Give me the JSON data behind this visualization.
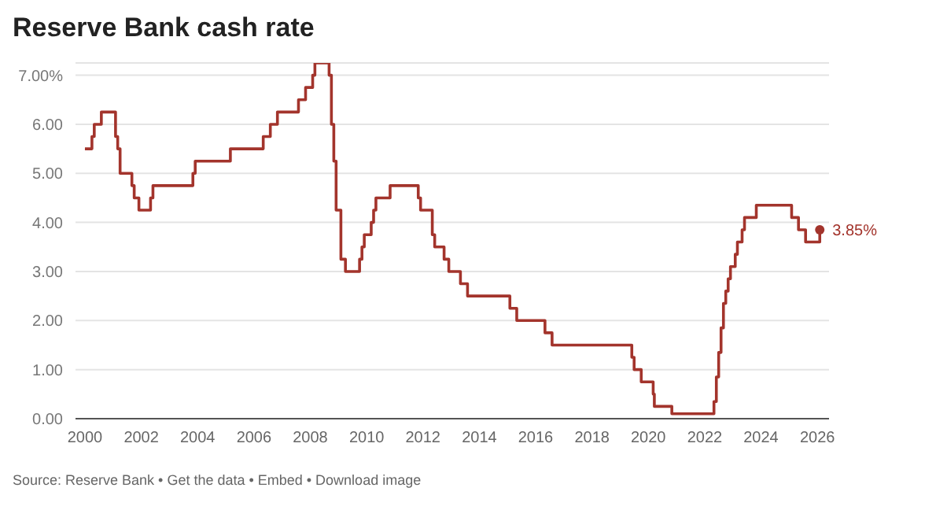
{
  "chart_data": {
    "type": "step",
    "title": "Reserve Bank cash rate",
    "x": [
      "2000-01",
      "2000-02",
      "2000-04",
      "2000-05",
      "2000-08",
      "2001-02",
      "2001-03",
      "2001-04",
      "2001-09",
      "2001-10",
      "2001-12",
      "2002-05",
      "2002-06",
      "2003-11",
      "2003-12",
      "2005-03",
      "2006-05",
      "2006-08",
      "2006-11",
      "2007-08",
      "2007-11",
      "2008-02",
      "2008-03",
      "2008-09",
      "2008-10",
      "2008-11",
      "2008-12",
      "2009-02",
      "2009-04",
      "2009-10",
      "2009-11",
      "2009-12",
      "2010-03",
      "2010-04",
      "2010-05",
      "2010-11",
      "2011-11",
      "2011-12",
      "2012-05",
      "2012-06",
      "2012-10",
      "2012-12",
      "2013-05",
      "2013-08",
      "2015-02",
      "2015-05",
      "2016-05",
      "2016-08",
      "2019-06",
      "2019-07",
      "2019-10",
      "2020-03-04",
      "2020-03-19",
      "2020-11",
      "2022-05",
      "2022-06",
      "2022-07",
      "2022-08",
      "2022-09",
      "2022-10",
      "2022-11",
      "2022-12",
      "2023-02",
      "2023-03",
      "2023-05",
      "2023-06",
      "2023-11",
      "2025-02",
      "2025-05",
      "2025-08",
      "2026-02"
    ],
    "series": [
      {
        "color": "#a3342c",
        "values": [
          5.5,
          5.5,
          5.75,
          6.0,
          6.25,
          5.75,
          5.5,
          5.0,
          4.75,
          4.5,
          4.25,
          4.5,
          4.75,
          5.0,
          5.25,
          5.5,
          5.75,
          6.0,
          6.25,
          6.5,
          6.75,
          7.0,
          7.25,
          7.0,
          6.0,
          5.25,
          4.25,
          3.25,
          3.0,
          3.25,
          3.5,
          3.75,
          4.0,
          4.25,
          4.5,
          4.75,
          4.5,
          4.25,
          3.75,
          3.5,
          3.25,
          3.0,
          2.75,
          2.5,
          2.25,
          2.0,
          1.75,
          1.5,
          1.25,
          1.0,
          0.75,
          0.5,
          0.25,
          0.1,
          0.35,
          0.85,
          1.35,
          1.85,
          2.35,
          2.6,
          2.85,
          3.1,
          3.35,
          3.6,
          3.85,
          4.1,
          4.35,
          4.1,
          3.85,
          3.6,
          3.85
        ]
      }
    ],
    "xlim": [
      "1999-09",
      "2026-06"
    ],
    "xticks": [
      "2000",
      "2002",
      "2004",
      "2006",
      "2008",
      "2010",
      "2012",
      "2014",
      "2016",
      "2018",
      "2020",
      "2022",
      "2024",
      "2026"
    ],
    "ylim": [
      0,
      7.25
    ],
    "yticks": [
      {
        "value": 0,
        "label": "0.00"
      },
      {
        "value": 1,
        "label": "1.00"
      },
      {
        "value": 2,
        "label": "2.00"
      },
      {
        "value": 3,
        "label": "3.00"
      },
      {
        "value": 4,
        "label": "4.00"
      },
      {
        "value": 5,
        "label": "5.00"
      },
      {
        "value": 6,
        "label": "6.00"
      },
      {
        "value": 7,
        "label": "7.00%"
      }
    ],
    "grid": "y",
    "legend": false,
    "marker": "none",
    "line_style": "solid",
    "annotations": [
      {
        "text": "3.85%",
        "x": "2026-02",
        "y": 3.85
      },
      "Source: Reserve Bank • Get the data • Embed • Download image"
    ]
  }
}
